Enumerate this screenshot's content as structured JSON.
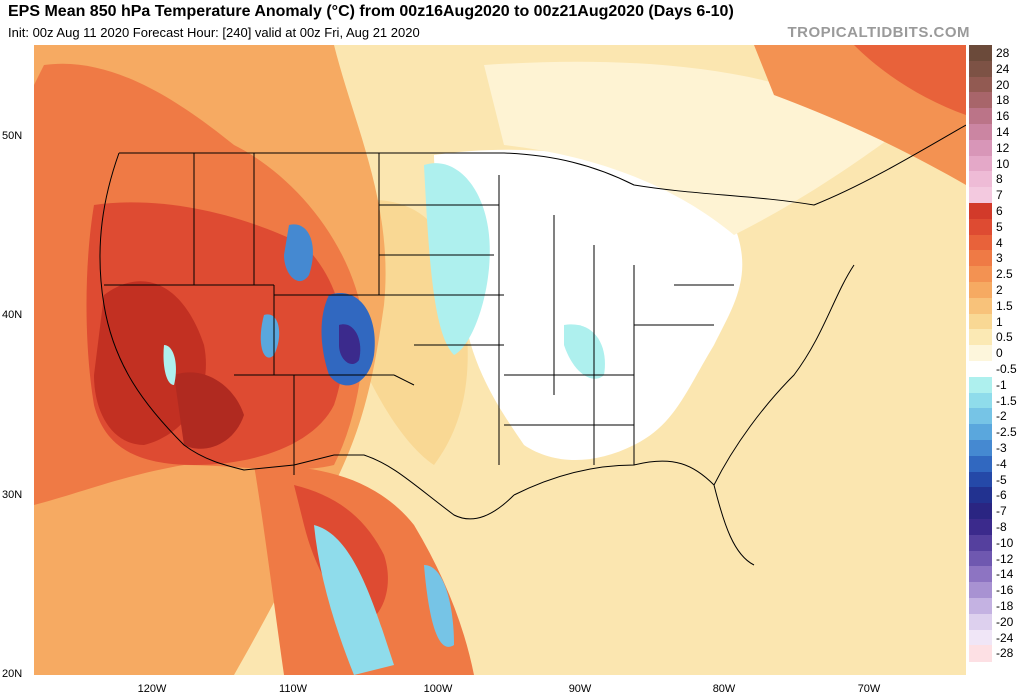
{
  "header": {
    "title": "EPS Mean 850 hPa Temperature Anomaly (°C) from 00z16Aug2020 to 00z21Aug2020 (Days 6-10)",
    "subtitle": "Init: 00z Aug 11 2020   Forecast Hour: [240]   valid at 00z Fri, Aug 21 2020",
    "site": "TROPICALTIDBITS.COM"
  },
  "map": {
    "lat_labels": [
      "50N",
      "40N",
      "30N",
      "20N"
    ],
    "lon_labels": [
      "120W",
      "110W",
      "100W",
      "90W",
      "80W",
      "70W"
    ]
  },
  "colorbar": {
    "labels": [
      "28",
      "24",
      "20",
      "18",
      "16",
      "14",
      "12",
      "10",
      "8",
      "7",
      "6",
      "5",
      "4",
      "3",
      "2.5",
      "2",
      "1.5",
      "1",
      "0.5",
      "0",
      "-0.5",
      "-1",
      "-1.5",
      "-2",
      "-2.5",
      "-3",
      "-4",
      "-5",
      "-6",
      "-7",
      "-8",
      "-10",
      "-12",
      "-14",
      "-16",
      "-18",
      "-20",
      "-24",
      "-28"
    ],
    "colors": [
      "#6b4a3a",
      "#7d5245",
      "#925a52",
      "#a8656a",
      "#bb7488",
      "#cb85a2",
      "#d896b8",
      "#e4a8c8",
      "#eebbd6",
      "#f3c9df",
      "#d23a2a",
      "#de4b32",
      "#e8623a",
      "#ef7a45",
      "#f39252",
      "#f6aa62",
      "#f8c27a",
      "#f9d894",
      "#fbe9b4",
      "#fdf6dc",
      "#ffffff",
      "#aef0ee",
      "#8fdceb",
      "#76c4e6",
      "#5aa7dd",
      "#4589d1",
      "#3168c0",
      "#2549a8",
      "#223290",
      "#2a2582",
      "#3b2a8c",
      "#55409e",
      "#6f58b0",
      "#8d74c2",
      "#a892d2",
      "#c4b2e2",
      "#ddd0ee",
      "#f0e6f7",
      "#fde0e4"
    ]
  }
}
